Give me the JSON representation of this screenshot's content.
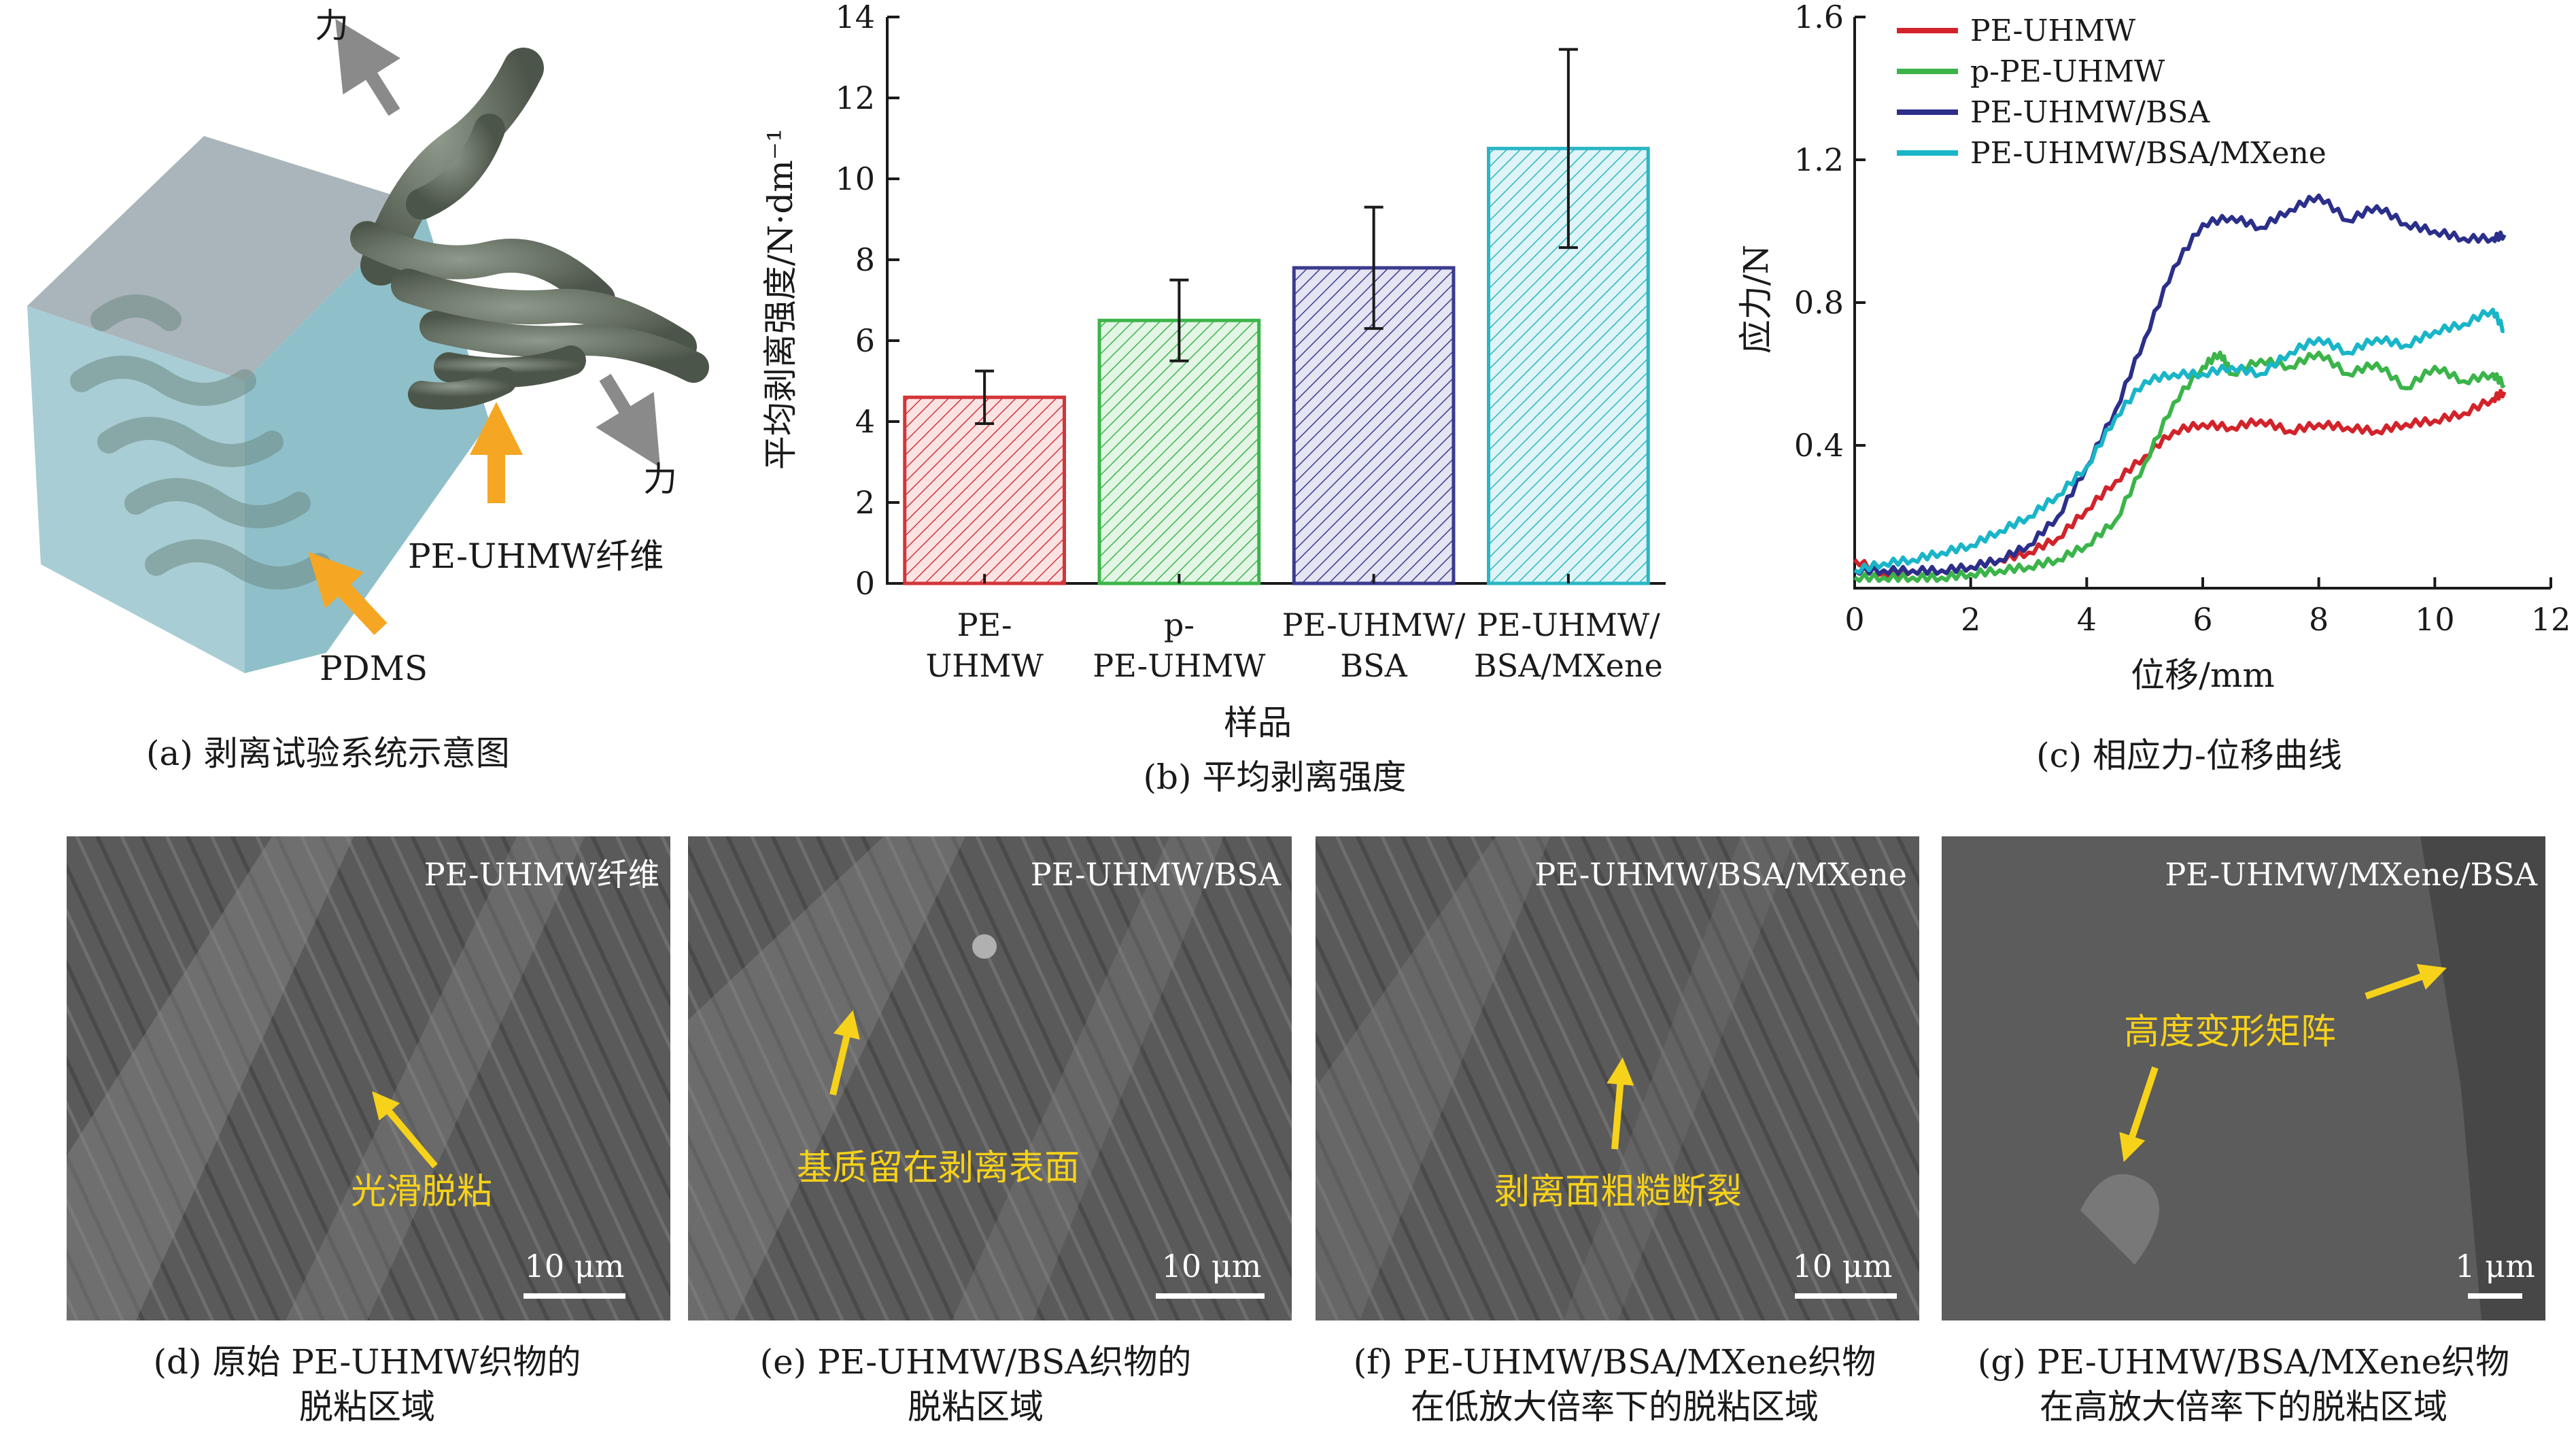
{
  "panel_a": {
    "caption": "(a) 剥离试验系统示意图",
    "force_label_top": "力",
    "force_label_bottom": "力",
    "fiber_label": "PE-UHMW纤维",
    "matrix_label": "PDMS"
  },
  "chart_data": [
    {
      "type": "bar",
      "caption": "(b) 平均剥离强度",
      "xlabel": "样品",
      "ylabel": "平均剥离强度/N·dm⁻¹",
      "ylim": [
        0,
        14
      ],
      "yticks": [
        0,
        2,
        4,
        6,
        8,
        10,
        12,
        14
      ],
      "categories": [
        [
          "PE-",
          "UHMW"
        ],
        [
          "p-",
          "PE-UHMW"
        ],
        [
          "PE-UHMW/",
          "BSA"
        ],
        [
          "PE-UHMW/",
          "BSA/MXene"
        ]
      ],
      "values": [
        4.6,
        6.5,
        7.8,
        10.75
      ],
      "errors": [
        0.65,
        1.0,
        1.5,
        2.45
      ],
      "colors": [
        "#d2363a",
        "#3cb54a",
        "#3a3b8f",
        "#2ab6c4"
      ],
      "pattern": "hatched",
      "grid": false
    },
    {
      "type": "line",
      "caption": "(c) 相应力-位移曲线",
      "xlabel": "位移/mm",
      "ylabel": "应力/N",
      "xlim": [
        0,
        12
      ],
      "ylim": [
        0,
        1.6
      ],
      "xticks": [
        0,
        2,
        4,
        6,
        8,
        10,
        12
      ],
      "yticks": [
        0.4,
        0.8,
        1.2,
        1.6
      ],
      "legend_position": "top-left",
      "grid": false,
      "series": [
        {
          "name": "PE-UHMW",
          "color": "#d2232a",
          "x": [
            0,
            0.5,
            1,
            1.5,
            2,
            2.5,
            3,
            3.5,
            4,
            4.5,
            5,
            5.5,
            6,
            6.5,
            7,
            7.5,
            8,
            8.5,
            9,
            9.5,
            10,
            10.5,
            11,
            11.2
          ],
          "y": [
            0.08,
            0.04,
            0.05,
            0.05,
            0.06,
            0.08,
            0.1,
            0.14,
            0.22,
            0.3,
            0.37,
            0.44,
            0.46,
            0.45,
            0.47,
            0.44,
            0.46,
            0.45,
            0.44,
            0.46,
            0.47,
            0.49,
            0.53,
            0.55
          ]
        },
        {
          "name": "p-PE-UHMW",
          "color": "#3bb44a",
          "x": [
            0,
            0.5,
            1,
            1.5,
            2,
            2.5,
            3,
            3.5,
            4,
            4.5,
            5,
            5.5,
            6,
            6.3,
            6.5,
            7,
            7.5,
            8,
            8.5,
            9,
            9.5,
            10,
            10.5,
            11,
            11.2
          ],
          "y": [
            0.03,
            0.03,
            0.03,
            0.03,
            0.04,
            0.05,
            0.06,
            0.08,
            0.12,
            0.19,
            0.35,
            0.52,
            0.62,
            0.66,
            0.6,
            0.64,
            0.62,
            0.66,
            0.6,
            0.63,
            0.56,
            0.62,
            0.58,
            0.6,
            0.57
          ]
        },
        {
          "name": "PE-UHMW/BSA",
          "color": "#2b2f8a",
          "x": [
            0,
            0.5,
            1,
            1.5,
            2,
            2.5,
            3,
            3.5,
            4,
            4.5,
            5,
            5.5,
            6,
            6.5,
            7,
            7.5,
            8,
            8.5,
            9,
            9.5,
            10,
            10.5,
            11,
            11.2
          ],
          "y": [
            0.05,
            0.05,
            0.05,
            0.05,
            0.06,
            0.08,
            0.12,
            0.2,
            0.34,
            0.5,
            0.7,
            0.9,
            1.02,
            1.04,
            1.01,
            1.06,
            1.1,
            1.03,
            1.07,
            1.02,
            1.0,
            0.98,
            0.98,
            0.99
          ]
        },
        {
          "name": "PE-UHMW/BSA/MXene",
          "color": "#19b5c8",
          "x": [
            0,
            0.5,
            1,
            1.5,
            2,
            2.5,
            3,
            3.5,
            4,
            4.5,
            5,
            5.5,
            6,
            6.5,
            7,
            7.5,
            8,
            8.5,
            9,
            9.5,
            10,
            10.5,
            11,
            11.2
          ],
          "y": [
            0.05,
            0.07,
            0.08,
            0.1,
            0.12,
            0.16,
            0.2,
            0.26,
            0.34,
            0.48,
            0.58,
            0.6,
            0.6,
            0.62,
            0.6,
            0.66,
            0.7,
            0.66,
            0.7,
            0.68,
            0.72,
            0.74,
            0.78,
            0.72
          ]
        }
      ]
    }
  ],
  "sem_panels": [
    {
      "title": "PE-UHMW纤维",
      "note": "光滑脱粘",
      "scale": "10 μm",
      "caption_line1": "(d) 原始 PE-UHMW织物的",
      "caption_line2": "脱粘区域"
    },
    {
      "title": "PE-UHMW/BSA",
      "note": "基质留在剥离表面",
      "scale": "10 μm",
      "caption_line1": "(e) PE-UHMW/BSA织物的",
      "caption_line2": "脱粘区域"
    },
    {
      "title": "PE-UHMW/BSA/MXene",
      "note": "剥离面粗糙断裂",
      "scale": "10 μm",
      "caption_line1": "(f) PE-UHMW/BSA/MXene织物",
      "caption_line2": "在低放大倍率下的脱粘区域"
    },
    {
      "title": "PE-UHMW/MXene/BSA",
      "note": "高度变形矩阵",
      "scale": "1 μm",
      "caption_line1": "(g) PE-UHMW/BSA/MXene织物",
      "caption_line2": "在高放大倍率下的脱粘区域"
    }
  ]
}
